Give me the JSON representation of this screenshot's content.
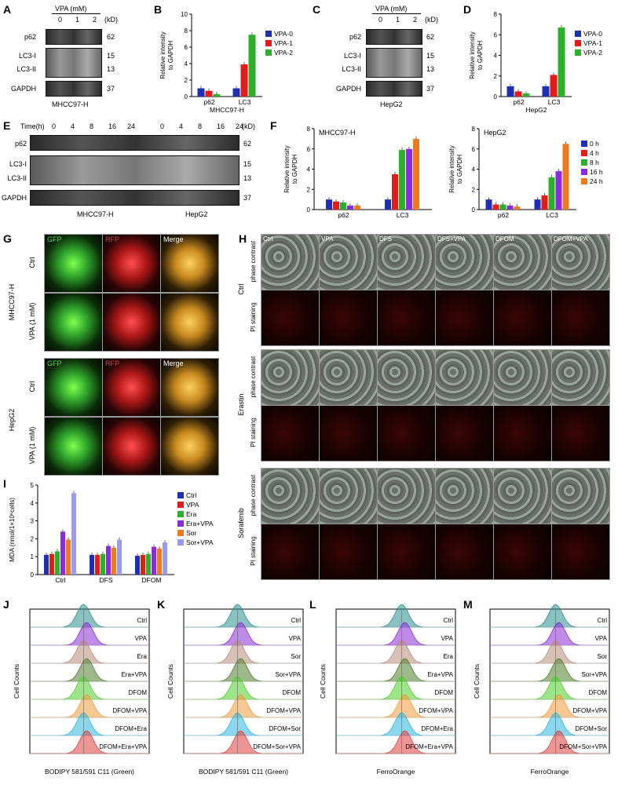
{
  "panels": {
    "A": {
      "letter": "A",
      "header": "VPA (mM)",
      "lanes": [
        "0",
        "1",
        "2"
      ],
      "kd_header": "(kD)",
      "rows": [
        {
          "label": "p62",
          "kd": "62"
        },
        {
          "label": "LC3-I",
          "kd": "15"
        },
        {
          "label": "LC3-II",
          "kd": "13"
        },
        {
          "label": "GAPDH",
          "kd": "37"
        }
      ],
      "caption": "MHCC97-H"
    },
    "C": {
      "letter": "C",
      "header": "VPA (mM)",
      "lanes": [
        "0",
        "1",
        "2"
      ],
      "kd_header": "(kD)",
      "rows": [
        {
          "label": "p62",
          "kd": "62"
        },
        {
          "label": "LC3-I",
          "kd": "15"
        },
        {
          "label": "LC3-II",
          "kd": "13"
        },
        {
          "label": "GAPDH",
          "kd": "37"
        }
      ],
      "caption": "HepG2"
    },
    "E": {
      "letter": "E",
      "header": "Time(h)",
      "lanes": [
        "0",
        "4",
        "8",
        "16",
        "24",
        "0",
        "4",
        "8",
        "16",
        "24"
      ],
      "kd_header": "(kD)",
      "rows": [
        {
          "label": "p62",
          "kd": "62"
        },
        {
          "label": "LC3-I",
          "kd": "15"
        },
        {
          "label": "LC3-II",
          "kd": "13"
        },
        {
          "label": "GAPDH",
          "kd": "37"
        }
      ],
      "captions": [
        "MHCC97-H",
        "HepG2"
      ]
    },
    "G": {
      "letter": "G",
      "col_labels": [
        "GFP",
        "RFP",
        "Merge"
      ],
      "group_labels": [
        "MHCC97-H",
        "HepG2"
      ],
      "row_labels": [
        "Ctrl",
        "VPA (1 mM)",
        "Ctrl",
        "VPA (1 mM)"
      ]
    },
    "H": {
      "letter": "H",
      "col_labels": [
        "Ctrl",
        "VPA",
        "DFS",
        "DFS+VPA",
        "DFOM",
        "DFOM+VPA"
      ],
      "group_labels": [
        "Ctrl",
        "Erastin",
        "Sorafenib"
      ],
      "row_labels": [
        "phase contrast",
        "PI staining"
      ]
    },
    "J": {
      "letter": "J",
      "xlabel": "BODIPY 581/591 C11 (Green)",
      "ylabel": "Cell Counts",
      "tracks": [
        "Ctrl",
        "VPA",
        "Era",
        "Era+VPA",
        "DFOM",
        "DFOM+VPA",
        "DFOM+Era",
        "DFOM+Era+VPA"
      ]
    },
    "K": {
      "letter": "K",
      "xlabel": "BODIPY 581/591 C11 (Green)",
      "ylabel": "Cell Counts",
      "tracks": [
        "Ctrl",
        "VPA",
        "Sor",
        "Sor+VPA",
        "DFOM",
        "DFOM+VPA",
        "DFOM+Sor",
        "DFOM+Sor+VPA"
      ]
    },
    "L": {
      "letter": "L",
      "xlabel": "FerroOrange",
      "ylabel": "Cell Counts",
      "tracks": [
        "Ctrl",
        "VPA",
        "Era",
        "Era+VPA",
        "DFOM",
        "DFOM+VPA",
        "DFOM+Era",
        "DFOM+Era+VPA"
      ]
    },
    "M": {
      "letter": "M",
      "xlabel": "FerroOrange",
      "ylabel": "Cell Counts",
      "tracks": [
        "Ctrl",
        "VPA",
        "Sor",
        "Sor+VPA",
        "DFOM",
        "DFOM+VPA",
        "DFOM+Sor",
        "DFOM+Sor+VPA"
      ]
    }
  },
  "colors": {
    "blue": "#1f2fb5",
    "red": "#e51b1b",
    "green": "#2cb02c",
    "purple": "#8a2be2",
    "orange": "#f07a1a",
    "lightpurple": "#9a9aee",
    "hist": [
      "#2a8f8f",
      "#8a2bd6",
      "#b98c7c",
      "#4e7e2e",
      "#4fcf2a",
      "#f09a3a",
      "#2bb8e0",
      "#e04040"
    ]
  },
  "chart_data": [
    {
      "panel": "B",
      "type": "bar",
      "title": "",
      "ylabel": "Relative intensity to GAPDH",
      "xlabel": "MHCC97-H",
      "ylim": [
        0,
        10
      ],
      "yticks": [
        0,
        2,
        4,
        6,
        8,
        10
      ],
      "categories": [
        "p62",
        "LC3"
      ],
      "series": [
        {
          "name": "VPA-0",
          "color": "#1f2fb5",
          "values": [
            1.0,
            1.0
          ]
        },
        {
          "name": "VPA-1",
          "color": "#e51b1b",
          "values": [
            0.7,
            3.9
          ]
        },
        {
          "name": "VPA-2",
          "color": "#2cb02c",
          "values": [
            0.3,
            7.5
          ]
        }
      ],
      "legend": "right"
    },
    {
      "panel": "D",
      "type": "bar",
      "title": "",
      "ylabel": "Relative intensity to GAPDH",
      "xlabel": "HepG2",
      "ylim": [
        0,
        8
      ],
      "yticks": [
        0,
        2,
        4,
        6,
        8
      ],
      "categories": [
        "p62",
        "LC3"
      ],
      "series": [
        {
          "name": "VPA-0",
          "color": "#1f2fb5",
          "values": [
            1.0,
            1.0
          ]
        },
        {
          "name": "VPA-1",
          "color": "#e51b1b",
          "values": [
            0.5,
            2.1
          ]
        },
        {
          "name": "VPA-2",
          "color": "#2cb02c",
          "values": [
            0.3,
            6.7
          ]
        }
      ],
      "legend": "right"
    },
    {
      "panel": "F1",
      "type": "bar",
      "title": "MHCC97-H",
      "ylabel": "Relative intensity to GAPDH",
      "xlabel": "",
      "ylim": [
        0,
        8
      ],
      "yticks": [
        0,
        2,
        4,
        6,
        8
      ],
      "categories": [
        "p62",
        "LC3"
      ],
      "series": [
        {
          "name": "0 h",
          "color": "#1f2fb5",
          "values": [
            1.0,
            1.0
          ]
        },
        {
          "name": "4 h",
          "color": "#e51b1b",
          "values": [
            0.8,
            3.5
          ]
        },
        {
          "name": "8 h",
          "color": "#2cb02c",
          "values": [
            0.7,
            5.9
          ]
        },
        {
          "name": "16 h",
          "color": "#8a2be2",
          "values": [
            0.4,
            6.0
          ]
        },
        {
          "name": "24 h",
          "color": "#f07a1a",
          "values": [
            0.4,
            7.0
          ]
        }
      ]
    },
    {
      "panel": "F2",
      "type": "bar",
      "title": "HepG2",
      "ylabel": "Relative intensity to GAPDH",
      "xlabel": "",
      "ylim": [
        0,
        8
      ],
      "yticks": [
        0,
        2,
        4,
        6,
        8
      ],
      "categories": [
        "p62",
        "LC3"
      ],
      "series": [
        {
          "name": "0 h",
          "color": "#1f2fb5",
          "values": [
            1.0,
            1.0
          ]
        },
        {
          "name": "4 h",
          "color": "#e51b1b",
          "values": [
            0.5,
            1.4
          ]
        },
        {
          "name": "8 h",
          "color": "#2cb02c",
          "values": [
            0.5,
            3.2
          ]
        },
        {
          "name": "16 h",
          "color": "#8a2be2",
          "values": [
            0.4,
            3.8
          ]
        },
        {
          "name": "24 h",
          "color": "#f07a1a",
          "values": [
            0.3,
            6.5
          ]
        }
      ],
      "legend": "right"
    },
    {
      "panel": "I",
      "type": "bar",
      "title": "",
      "ylabel": "MDA (nmol/1×10⁶cells)",
      "xlabel": "",
      "ylim": [
        0,
        5
      ],
      "yticks": [
        0,
        1,
        2,
        3,
        4,
        5
      ],
      "categories": [
        "Ctrl",
        "DFS",
        "DFOM"
      ],
      "series": [
        {
          "name": "Ctrl",
          "color": "#1f2fb5",
          "values": [
            1.1,
            1.1,
            1.05
          ]
        },
        {
          "name": "VPA",
          "color": "#e51b1b",
          "values": [
            1.15,
            1.1,
            1.1
          ]
        },
        {
          "name": "Era",
          "color": "#2cb02c",
          "values": [
            1.3,
            1.15,
            1.15
          ]
        },
        {
          "name": "Era+VPA",
          "color": "#8a2be2",
          "values": [
            2.4,
            1.6,
            1.55
          ]
        },
        {
          "name": "Sor",
          "color": "#f07a1a",
          "values": [
            1.95,
            1.5,
            1.45
          ]
        },
        {
          "name": "Sor+VPA",
          "color": "#9a9aee",
          "values": [
            4.55,
            1.95,
            1.8
          ]
        }
      ],
      "legend": "right"
    }
  ]
}
